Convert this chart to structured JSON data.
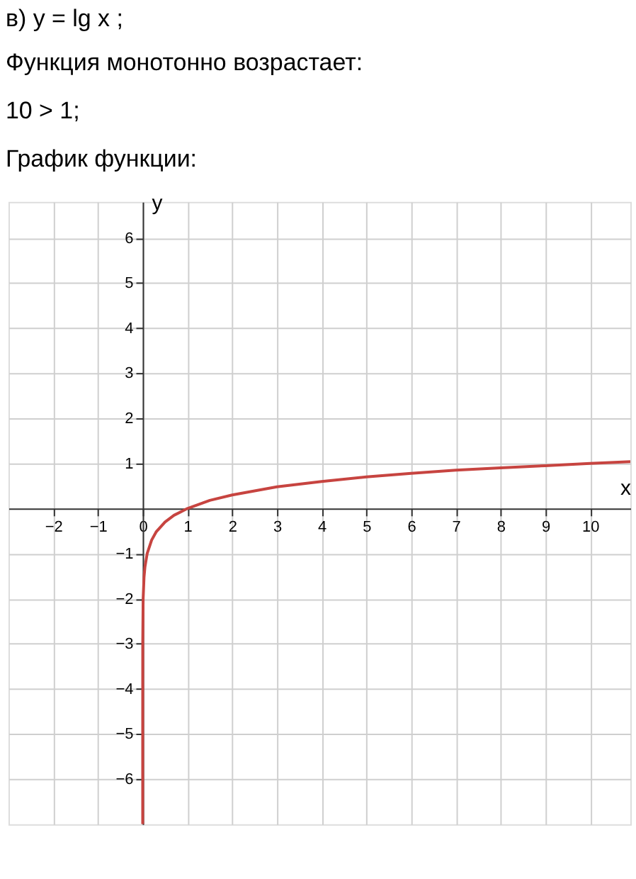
{
  "chart_data": {
    "type": "line",
    "title": "в) y = lg x ;",
    "annotations": [
      "Функция монотонно возрастает:",
      "10 > 1;",
      "График функции:"
    ],
    "xlabel": "x",
    "ylabel": "y",
    "x": [
      1e-07,
      1e-05,
      0.001,
      0.01,
      0.03,
      0.05,
      0.1,
      0.2,
      0.3,
      0.5,
      0.7,
      1,
      1.5,
      2,
      3,
      4,
      5,
      6,
      7,
      8,
      9,
      10,
      10.9
    ],
    "series": [
      {
        "color": "#c74440",
        "values": [
          -7,
          -5,
          -3,
          -2,
          -1.52,
          -1.3,
          -1,
          -0.7,
          -0.52,
          -0.3,
          -0.15,
          0,
          0.18,
          0.3,
          0.48,
          0.6,
          0.7,
          0.78,
          0.85,
          0.9,
          0.95,
          1,
          1.04
        ]
      }
    ],
    "xlim": [
      -3,
      10.9
    ],
    "ylim": [
      -7,
      6.8
    ],
    "xticks": [
      -2,
      -1,
      0,
      1,
      2,
      3,
      4,
      5,
      6,
      7,
      8,
      9,
      10
    ],
    "yticks": [
      -6,
      -5,
      -4,
      -3,
      -2,
      -1,
      1,
      2,
      3,
      4,
      5,
      6
    ],
    "grid": true,
    "marker": "none",
    "line_style": "solid"
  }
}
